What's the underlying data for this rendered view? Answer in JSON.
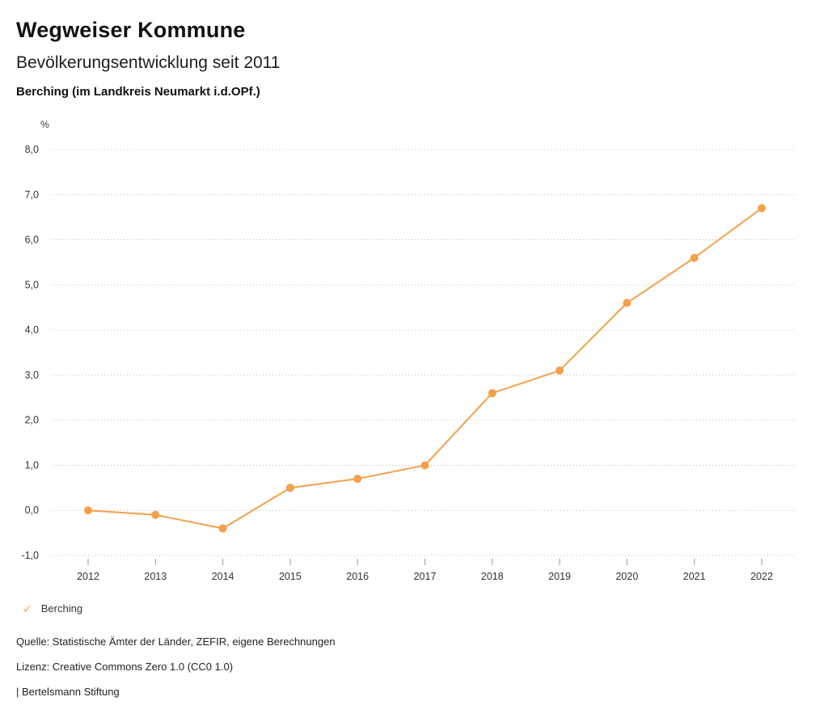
{
  "header": {
    "title": "Wegweiser Kommune",
    "subtitle": "Bevölkerungsentwicklung seit 2011",
    "region": "Berching (im Landkreis Neumarkt i.d.OPf.)"
  },
  "legend": {
    "check_icon": "✓",
    "label": "Berching",
    "color": "#F5A04A"
  },
  "footer": {
    "source": "Quelle: Statistische Ämter der Länder, ZEFIR, eigene Berechnungen",
    "license": "Lizenz: Creative Commons Zero 1.0 (CC0 1.0)",
    "attribution": "| Bertelsmann Stiftung"
  },
  "chart_data": {
    "type": "line",
    "title": "Bevölkerungsentwicklung seit 2011",
    "region": "Berching (im Landkreis Neumarkt i.d.OPf.)",
    "xlabel": "",
    "ylabel": "%",
    "categories": [
      "2012",
      "2013",
      "2014",
      "2015",
      "2016",
      "2017",
      "2018",
      "2019",
      "2020",
      "2021",
      "2022"
    ],
    "series": [
      {
        "name": "Berching",
        "color": "#F5A04A",
        "values": [
          0.0,
          -0.1,
          -0.4,
          0.5,
          0.7,
          1.0,
          2.6,
          3.1,
          4.6,
          5.6,
          6.7
        ]
      }
    ],
    "ylim": [
      -1.0,
      8.0
    ],
    "ytick_step": 1.0,
    "decimal_separator": ",",
    "grid": "dotted-horizontal",
    "gridline_color": "#bbbbbb",
    "axis_text_color": "#333333",
    "legend_position": "bottom-left"
  }
}
